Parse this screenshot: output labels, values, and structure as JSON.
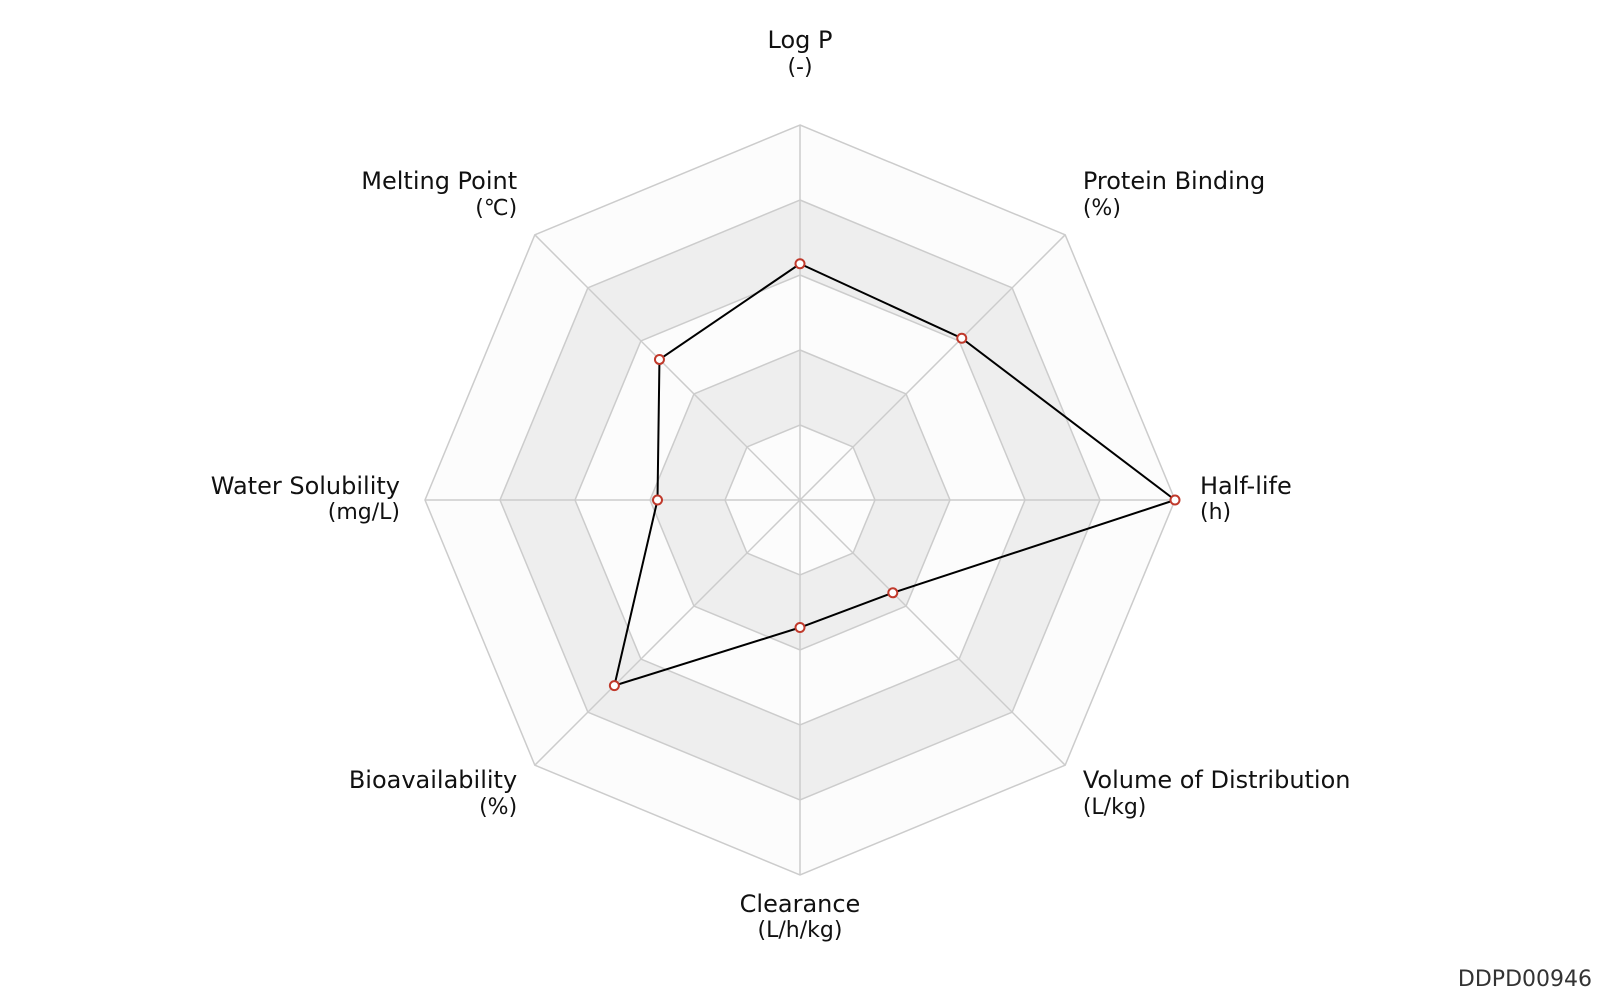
{
  "chart_data": {
    "type": "radar",
    "title": "",
    "axes": [
      {
        "label": "Log P",
        "unit": "(-)"
      },
      {
        "label": "Protein Binding",
        "unit": "(%)"
      },
      {
        "label": "Half-life",
        "unit": "(h)"
      },
      {
        "label": "Volume of Distribution",
        "unit": "(L/kg)"
      },
      {
        "label": "Clearance",
        "unit": "(L/h/kg)"
      },
      {
        "label": "Bioavailability",
        "unit": "(%)"
      },
      {
        "label": "Water Solubility",
        "unit": "(mg/L)"
      },
      {
        "label": "Melting Point",
        "unit": "(℃)"
      }
    ],
    "normalized_range": [
      0,
      1
    ],
    "rings": 5,
    "grid": true,
    "series": [
      {
        "values": [
          0.63,
          0.61,
          1.0,
          0.35,
          0.34,
          0.7,
          0.38,
          0.53
        ]
      }
    ],
    "colors": {
      "series_line": "#000000",
      "marker_edge": "#c0392b",
      "marker_fill": "#ffffff",
      "grid_line": "#cccccc",
      "band_dark": "#eeeeee",
      "band_light": "#fcfcfc"
    }
  },
  "chart_id": "DDPD00946"
}
